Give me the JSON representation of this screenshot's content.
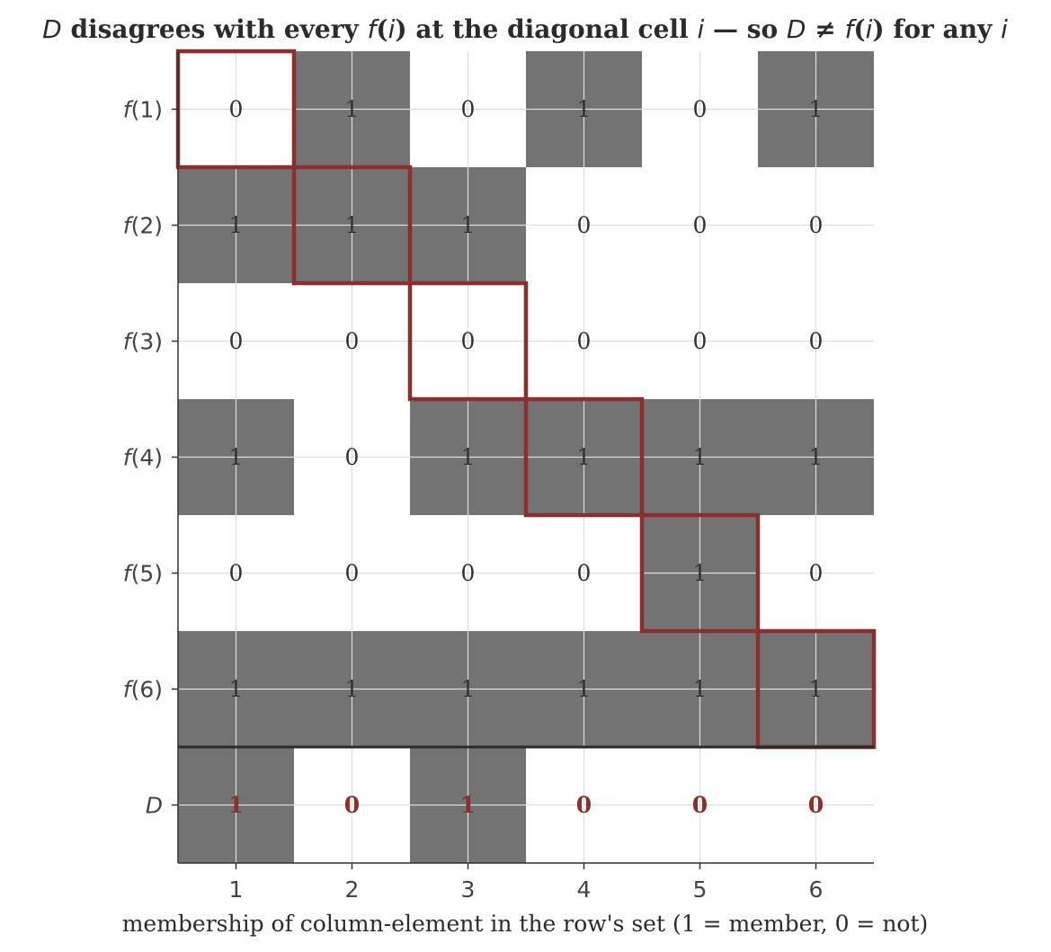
{
  "chart_data": {
    "type": "heatmap",
    "title": "D disagrees with every f(i) at the diagonal cell i — so D ≠ f(i) for any i",
    "xlabel": "membership of column-element in the row's set (1 = member, 0 = not)",
    "ylabel": "",
    "x_categories": [
      "1",
      "2",
      "3",
      "4",
      "5",
      "6"
    ],
    "y_categories": [
      "f(1)",
      "f(2)",
      "f(3)",
      "f(4)",
      "f(5)",
      "f(6)",
      "D"
    ],
    "matrix": [
      [
        0,
        1,
        0,
        1,
        0,
        1
      ],
      [
        1,
        1,
        1,
        0,
        0,
        0
      ],
      [
        0,
        0,
        0,
        0,
        0,
        0
      ],
      [
        1,
        0,
        1,
        1,
        1,
        1
      ],
      [
        0,
        0,
        0,
        0,
        1,
        0
      ],
      [
        1,
        1,
        1,
        1,
        1,
        1
      ]
    ],
    "diagonal_row": {
      "label": "D",
      "values": [
        1,
        0,
        1,
        0,
        0,
        0
      ]
    },
    "highlight": "diagonal cells",
    "grid": true,
    "colors": {
      "filled": "#737373",
      "empty": "#ffffff",
      "diagonal_outline": "#8b2e2e",
      "d_text": "#8b2e2e",
      "grid": "#dddddd",
      "axis": "#333333"
    }
  }
}
